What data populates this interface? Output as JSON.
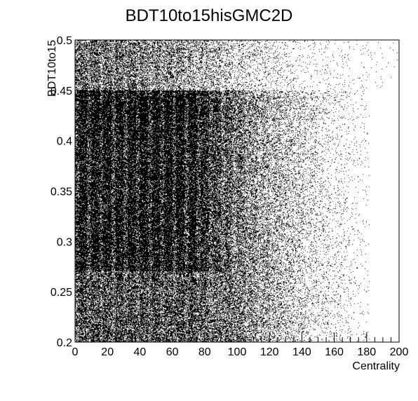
{
  "colors": {
    "background": "#ffffff",
    "frame": "#000000",
    "points": "#000000"
  },
  "chart_data": {
    "type": "scatter",
    "title": "BDT10to15hisGMC2D",
    "xlabel": "Centrality",
    "ylabel": "BDT10to15",
    "xlim": [
      0,
      200
    ],
    "ylim": [
      0.2,
      0.5
    ],
    "x_ticks": [
      "0",
      "20",
      "40",
      "60",
      "80",
      "100",
      "120",
      "140",
      "160",
      "180",
      "200"
    ],
    "y_ticks": [
      "0.2",
      "0.25",
      "0.3",
      "0.35",
      "0.4",
      "0.45",
      "0.5"
    ],
    "grid": false,
    "legend": "none",
    "density_regions": [
      {
        "x": [
          0,
          200
        ],
        "y": [
          0.2,
          0.45
        ],
        "falloff_x": [
          90,
          180
        ],
        "density": "high"
      },
      {
        "x": [
          0,
          200
        ],
        "y": [
          0.45,
          0.5
        ],
        "falloff_x": [
          0,
          120
        ],
        "density": "medium"
      }
    ]
  }
}
